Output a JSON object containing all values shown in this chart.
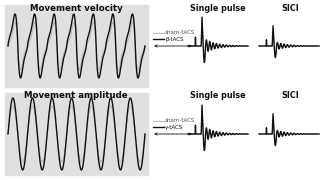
{
  "bg_color": "#ffffff",
  "panel_bg_top": "#e8e8e8",
  "panel_bg_bot": "#e8e8e8",
  "text_color": "#111111",
  "title_top_left": "Movement velocity",
  "title_bottom_left": "Movement amplitude",
  "title_top_mid1": "Single pulse",
  "title_top_mid2": "SICI",
  "title_bot_mid1": "Single pulse",
  "title_bot_mid2": "SICI",
  "legend_top": [
    "sham-tACS",
    "β-tACS"
  ],
  "legend_bot": [
    "sham-tACS",
    "γ-tACS"
  ],
  "color_sham": "#aaaaaa",
  "color_bold": "#111111",
  "lw_sham": 0.5,
  "lw_bold": 1.0
}
